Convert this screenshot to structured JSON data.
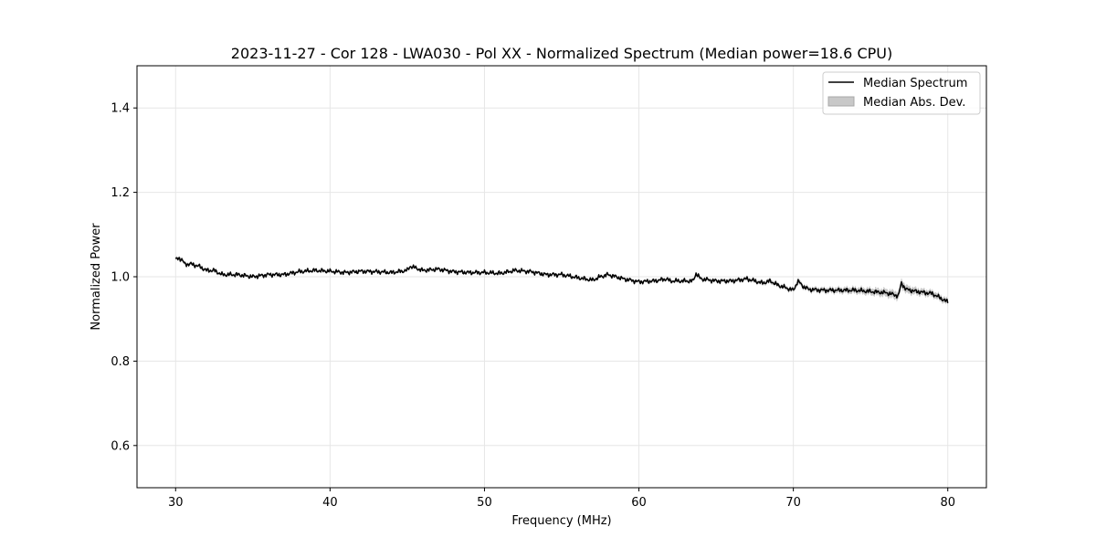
{
  "chart_data": {
    "type": "line",
    "title": "2023-11-27 - Cor 128 - LWA030 - Pol XX - Normalized Spectrum (Median power=18.6 CPU)",
    "xlabel": "Frequency (MHz)",
    "ylabel": "Normalized Power",
    "xlim": [
      27.5,
      82.5
    ],
    "ylim": [
      0.5,
      1.5
    ],
    "xticks": [
      30,
      40,
      50,
      60,
      70,
      80
    ],
    "yticks": [
      0.6,
      0.8,
      1.0,
      1.2,
      1.4
    ],
    "xtick_labels": [
      "30",
      "40",
      "50",
      "60",
      "70",
      "80"
    ],
    "ytick_labels": [
      "0.6",
      "0.8",
      "1.0",
      "1.2",
      "1.4"
    ],
    "grid": true,
    "legend_position": "top-right",
    "legend": [
      "Median Spectrum",
      "Median Abs. Dev."
    ],
    "series": [
      {
        "name": "Median Spectrum",
        "color": "#000000",
        "x": [
          30,
          30.2,
          30.4,
          30.6,
          31,
          31.5,
          32,
          32.5,
          33,
          34,
          35,
          36,
          37,
          38,
          39,
          40,
          41,
          42,
          43,
          44,
          45,
          45.2,
          46,
          47,
          48,
          49,
          50,
          51,
          52,
          53,
          54,
          55,
          56,
          57,
          57.5,
          58,
          59,
          60,
          61,
          61.8,
          62,
          63,
          63.5,
          63.7,
          64,
          65,
          66,
          67,
          68,
          68.5,
          69,
          70,
          70.3,
          70.6,
          71,
          72,
          73,
          74,
          75,
          76,
          76.8,
          77,
          77.3,
          78,
          79,
          79.5,
          80
        ],
        "y": [
          1.04,
          1.045,
          1.04,
          1.03,
          1.03,
          1.025,
          1.015,
          1.015,
          1.005,
          1.005,
          1.0,
          1.005,
          1.005,
          1.012,
          1.015,
          1.013,
          1.01,
          1.013,
          1.012,
          1.01,
          1.015,
          1.025,
          1.015,
          1.018,
          1.012,
          1.01,
          1.01,
          1.008,
          1.015,
          1.012,
          1.005,
          1.005,
          0.998,
          0.992,
          1.0,
          1.005,
          0.995,
          0.988,
          0.99,
          0.995,
          0.99,
          0.99,
          0.99,
          1.008,
          0.995,
          0.99,
          0.99,
          0.995,
          0.985,
          0.99,
          0.98,
          0.968,
          0.99,
          0.978,
          0.97,
          0.968,
          0.968,
          0.968,
          0.965,
          0.962,
          0.955,
          0.985,
          0.97,
          0.965,
          0.96,
          0.95,
          0.94
        ]
      },
      {
        "name": "Median Abs. Dev.",
        "color": "#c8c8c8",
        "x": [
          30,
          35,
          40,
          45,
          50,
          55,
          60,
          65,
          70,
          72,
          75,
          77,
          78,
          80
        ],
        "dev": [
          0.004,
          0.003,
          0.003,
          0.003,
          0.003,
          0.003,
          0.003,
          0.004,
          0.005,
          0.006,
          0.008,
          0.01,
          0.008,
          0.007
        ]
      }
    ]
  }
}
